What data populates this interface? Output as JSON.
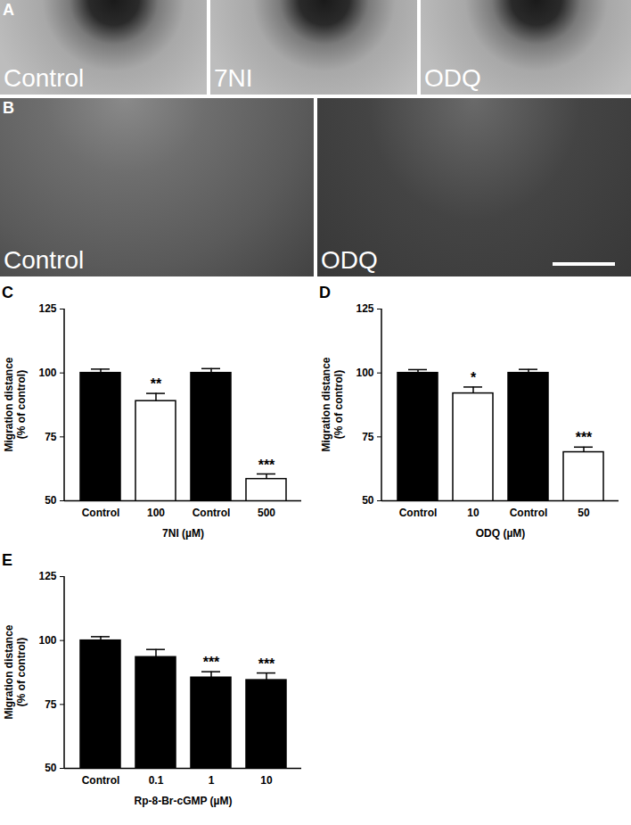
{
  "chart_data": [
    {
      "type": "bar",
      "title": "C",
      "categories": [
        "Control",
        "100",
        "Control",
        "500"
      ],
      "values": [
        100,
        89,
        100,
        58.5
      ],
      "errors": [
        1.5,
        3,
        1.7,
        2
      ],
      "annotations": [
        null,
        "**",
        null,
        "***"
      ],
      "colors": [
        "#000000",
        "#ffffff",
        "#000000",
        "#ffffff"
      ],
      "xlabel": "7NI (µM)",
      "ylabel": "Migration distance\n(% of control)",
      "ylim": [
        50,
        125
      ],
      "yticks": [
        50,
        75,
        100,
        125
      ]
    },
    {
      "type": "bar",
      "title": "D",
      "categories": [
        "Control",
        "10",
        "Control",
        "50"
      ],
      "values": [
        100,
        92,
        100,
        69
      ],
      "errors": [
        1.3,
        2.5,
        1.4,
        2
      ],
      "annotations": [
        null,
        "*",
        null,
        "***"
      ],
      "colors": [
        "#000000",
        "#ffffff",
        "#000000",
        "#ffffff"
      ],
      "xlabel": "ODQ (µM)",
      "ylabel": "Migration distance\n(% of control)",
      "ylim": [
        50,
        125
      ],
      "yticks": [
        50,
        75,
        100,
        125
      ]
    },
    {
      "type": "bar",
      "title": "E",
      "categories": [
        "Control",
        "0.1",
        "1",
        "10"
      ],
      "values": [
        100,
        93.5,
        85.5,
        84.5
      ],
      "errors": [
        1.5,
        3,
        2.3,
        2.8
      ],
      "annotations": [
        null,
        null,
        "***",
        "***"
      ],
      "colors": [
        "#000000",
        "#000000",
        "#000000",
        "#000000"
      ],
      "xlabel": "Rp-8-Br-cGMP (µM)",
      "ylabel": "Migration distance\n(% of control)",
      "ylim": [
        50,
        125
      ],
      "yticks": [
        50,
        75,
        100,
        125
      ]
    }
  ],
  "panels": [
    {
      "letter": "A",
      "images": [
        "Control",
        "7NI",
        "ODQ"
      ]
    },
    {
      "letter": "B",
      "images": [
        "Control",
        "ODQ"
      ]
    }
  ]
}
